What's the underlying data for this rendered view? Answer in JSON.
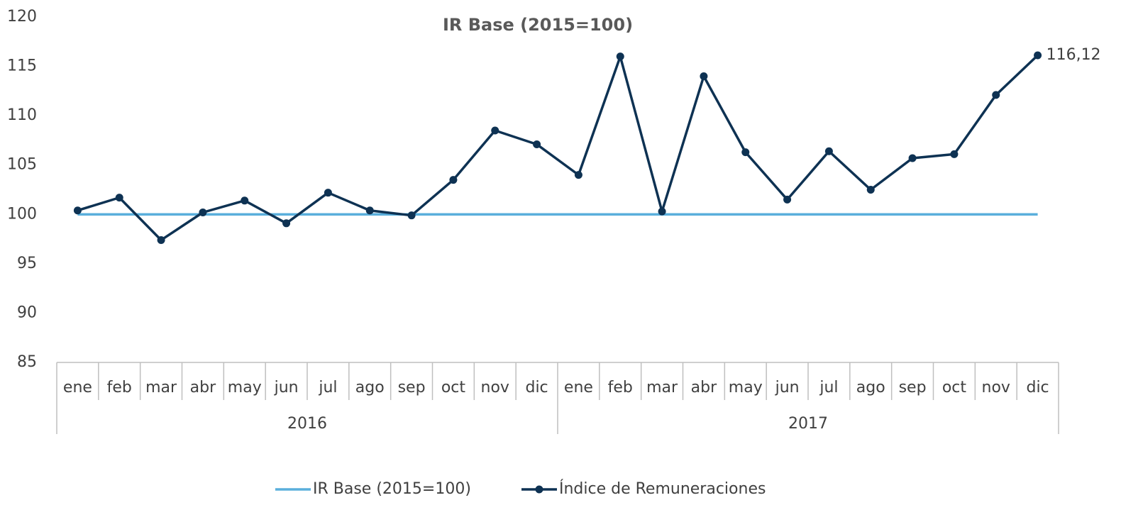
{
  "chart_data": {
    "type": "line",
    "title": "IR Base (2015=100)",
    "categories": [
      "ene",
      "feb",
      "mar",
      "abr",
      "may",
      "jun",
      "jul",
      "ago",
      "sep",
      "oct",
      "nov",
      "dic",
      "ene",
      "feb",
      "mar",
      "abr",
      "may",
      "jun",
      "jul",
      "ago",
      "sep",
      "oct",
      "nov",
      "dic"
    ],
    "category_groups": [
      "2016",
      "2017"
    ],
    "series": [
      {
        "name": "IR Base (2015=100)",
        "color": "#5aafdc",
        "markers": false,
        "values": [
          100,
          100,
          100,
          100,
          100,
          100,
          100,
          100,
          100,
          100,
          100,
          100,
          100,
          100,
          100,
          100,
          100,
          100,
          100,
          100,
          100,
          100,
          100,
          100
        ]
      },
      {
        "name": "Índice de Remuneraciones",
        "color": "#0e3253",
        "markers": true,
        "values": [
          100.4,
          101.7,
          97.4,
          100.2,
          101.4,
          99.1,
          102.2,
          100.4,
          99.9,
          103.5,
          108.5,
          107.1,
          104.0,
          116.0,
          100.3,
          114.0,
          106.3,
          101.5,
          106.4,
          102.5,
          105.7,
          106.1,
          112.1,
          116.12
        ],
        "value_labels": [
          null,
          null,
          null,
          null,
          null,
          null,
          null,
          null,
          null,
          null,
          null,
          null,
          null,
          null,
          null,
          null,
          null,
          null,
          null,
          null,
          null,
          null,
          null,
          "116,12"
        ]
      }
    ],
    "ylim": [
      85,
      120
    ],
    "yticks": [
      85,
      90,
      95,
      100,
      105,
      110,
      115,
      120
    ],
    "grid": false,
    "legend": "bottom"
  }
}
